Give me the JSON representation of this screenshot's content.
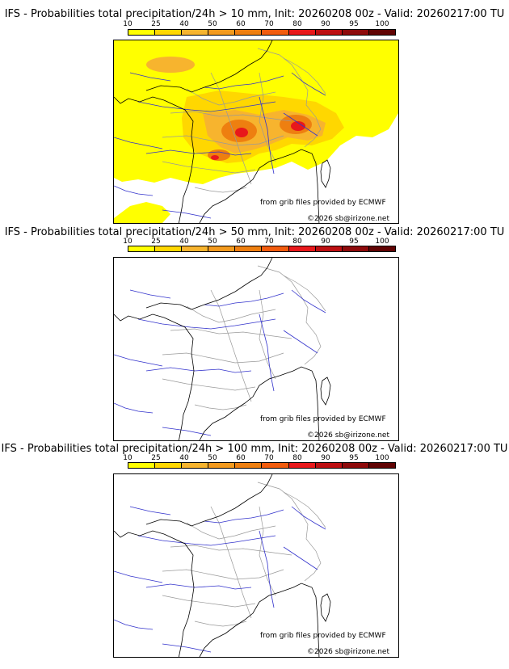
{
  "legend": {
    "ticks": [
      "10",
      "25",
      "40",
      "50",
      "60",
      "70",
      "80",
      "90",
      "95",
      "100"
    ],
    "colors": [
      "#ffff00",
      "#ffd700",
      "#f7b42e",
      "#f39a1e",
      "#ee7f10",
      "#f25c0e",
      "#e8181b",
      "#bd0f12",
      "#8e0a0b",
      "#610303"
    ]
  },
  "panels": [
    {
      "title": "IFS - Probabilities total precipitation/24h > 10 mm, Init: 20260208 00z - Valid: 20260217:00 TU",
      "source": "from grib files provided by ECMWF",
      "copyright": "©2026 sb@irizone.net",
      "has_precip": true
    },
    {
      "title": "IFS - Probabilities total precipitation/24h > 50 mm, Init: 20260208 00z - Valid: 20260217:00 TU",
      "source": "from grib files provided by ECMWF",
      "copyright": "©2026 sb@irizone.net",
      "has_precip": false
    },
    {
      "title": "IFS - Probabilities total precipitation/24h > 100 mm, Init: 20260208 00z - Valid: 20260217:00 TU",
      "source": "from grib files provided by ECMWF",
      "copyright": "©2026 sb@irizone.net",
      "has_precip": false
    }
  ],
  "map_colors": {
    "coast": "#000000",
    "rivers": "#3333cc",
    "borders": "#999999"
  }
}
